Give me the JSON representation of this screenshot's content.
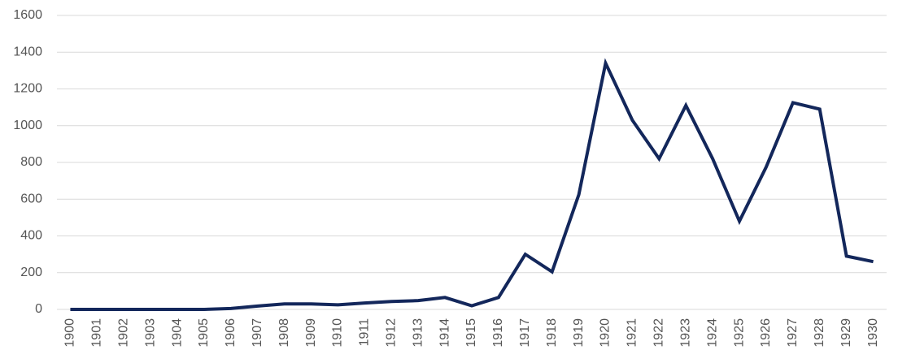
{
  "chart_data": {
    "type": "line",
    "categories": [
      "1900",
      "1901",
      "1902",
      "1903",
      "1904",
      "1905",
      "1906",
      "1907",
      "1908",
      "1909",
      "1910",
      "1911",
      "1912",
      "1913",
      "1914",
      "1915",
      "1916",
      "1917",
      "1918",
      "1919",
      "1920",
      "1921",
      "1922",
      "1923",
      "1924",
      "1925",
      "1926",
      "1927",
      "1928",
      "1929",
      "1930"
    ],
    "series": [
      {
        "name": null,
        "color": "#13275b",
        "values": [
          0,
          0,
          0,
          0,
          0,
          0,
          5,
          18,
          30,
          30,
          25,
          35,
          43,
          48,
          65,
          20,
          65,
          300,
          205,
          625,
          1340,
          1030,
          820,
          1110,
          820,
          480,
          775,
          1125,
          1090,
          290,
          260
        ]
      }
    ],
    "ylim": [
      0,
      1600
    ],
    "yticks": [
      0,
      200,
      400,
      600,
      800,
      1000,
      1200,
      1400,
      1600
    ],
    "grid": true
  }
}
